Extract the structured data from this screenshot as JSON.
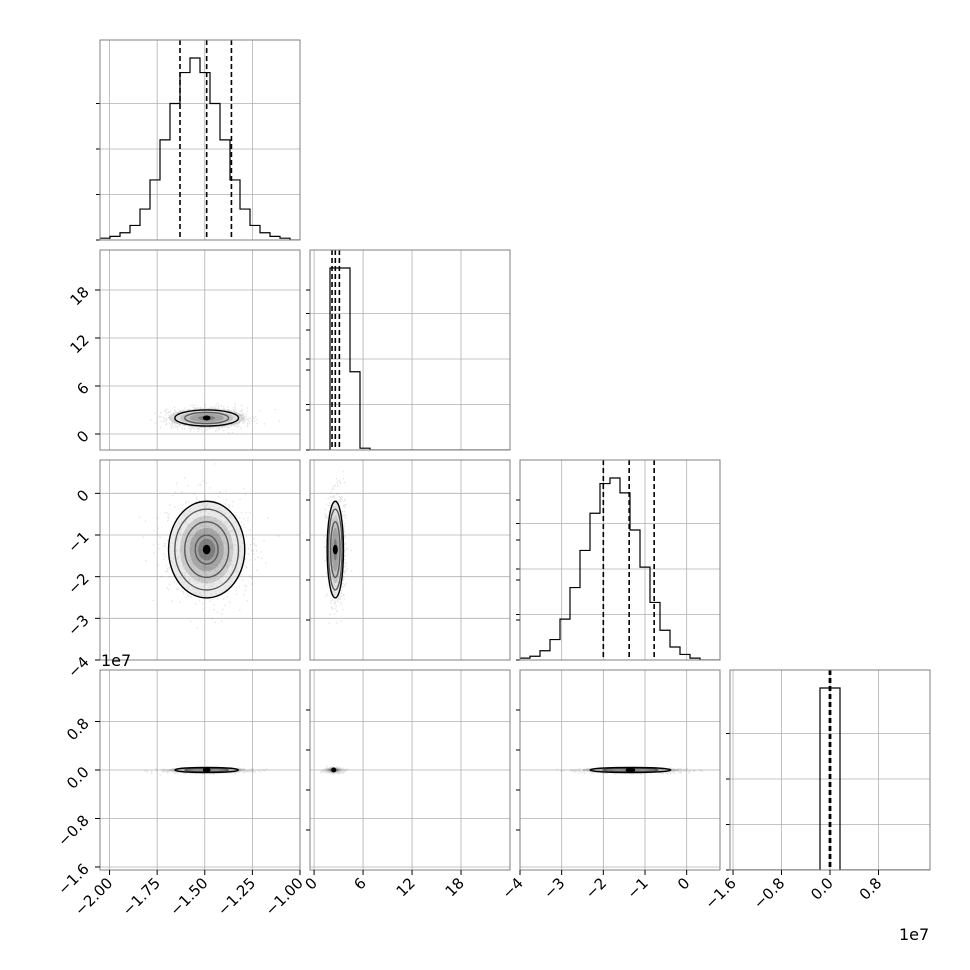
{
  "figure": {
    "offset_label": "1e7",
    "colors": {
      "hist": "#000000",
      "grid": "#b0b0b0",
      "frame": "#808080",
      "density": "#000000"
    }
  },
  "chart_data": [
    {
      "type": "histogram",
      "id": "p0",
      "bin_range": [
        -2.05,
        -1.0
      ],
      "counts": [
        1,
        2,
        4,
        8,
        17,
        33,
        55,
        75,
        92,
        100,
        92,
        75,
        55,
        33,
        17,
        8,
        4,
        2,
        1,
        0
      ],
      "quantiles": [
        -1.63,
        -1.49,
        -1.36
      ],
      "grid_x": [
        -2.0,
        -1.75,
        -1.5,
        -1.25,
        -1.0
      ]
    },
    {
      "type": "histogram",
      "id": "p1",
      "bin_range": [
        -0.5,
        24.0
      ],
      "counts": [
        0,
        0,
        100,
        100,
        43,
        1,
        0,
        0,
        0,
        0,
        0,
        0,
        0,
        0,
        0,
        0,
        0,
        0,
        0,
        0
      ],
      "quantiles": [
        2.2,
        2.6,
        3.1
      ],
      "grid_x": [
        0,
        6,
        12,
        18
      ]
    },
    {
      "type": "histogram",
      "id": "p2",
      "bin_range": [
        -4.0,
        0.8
      ],
      "counts": [
        1,
        2,
        5,
        11,
        22,
        39,
        59,
        79,
        95,
        98,
        90,
        70,
        50,
        31,
        16,
        7,
        3,
        1,
        0,
        0
      ],
      "quantiles": [
        -2.0,
        -1.38,
        -0.78
      ],
      "grid_x": [
        -4,
        -3,
        -2,
        -1,
        0
      ]
    },
    {
      "type": "histogram",
      "id": "p3",
      "bin_range": [
        -1.65,
        1.65
      ],
      "counts": [
        0,
        0,
        0,
        0,
        0,
        0,
        0,
        0,
        0,
        100,
        100,
        0,
        0,
        0,
        0,
        0,
        0,
        0,
        0,
        0
      ],
      "quantiles": [
        -0.01,
        0.0,
        0.01
      ],
      "grid_x": [
        -1.6,
        -0.8,
        0.0,
        0.8
      ]
    },
    {
      "type": "density",
      "id": "p10",
      "x_range": [
        -2.05,
        -1.0
      ],
      "y_range": [
        -2.0,
        23.0
      ],
      "center": [
        -1.49,
        2.0
      ],
      "sigma": [
        0.1,
        0.6
      ],
      "contour_levels": [
        1.15,
        1.67
      ],
      "grid_x": [
        -2.0,
        -1.75,
        -1.5,
        -1.25,
        -1.0
      ],
      "grid_y": [
        0,
        6,
        12,
        18
      ]
    },
    {
      "type": "density",
      "id": "p20",
      "x_range": [
        -2.05,
        -1.0
      ],
      "y_range": [
        -4.0,
        0.8
      ],
      "center": [
        -1.49,
        -1.35
      ],
      "sigma": [
        0.1,
        0.58
      ],
      "contour_levels": [
        0.6,
        1.15,
        1.67,
        2.0
      ],
      "grid_x": [
        -2.0,
        -1.75,
        -1.5,
        -1.25,
        -1.0
      ],
      "grid_y": [
        0,
        -1,
        -2,
        -3,
        -4
      ]
    },
    {
      "type": "density",
      "id": "p21",
      "x_range": [
        -0.5,
        24.0
      ],
      "y_range": [
        -4.0,
        0.8
      ],
      "center": [
        2.6,
        -1.35
      ],
      "sigma": [
        0.5,
        0.58
      ],
      "contour_levels": [
        1.15,
        1.67,
        2.0
      ],
      "grid_x": [
        0,
        6,
        12,
        18
      ],
      "grid_y": [
        0,
        -1,
        -2,
        -3,
        -4
      ]
    },
    {
      "type": "density",
      "id": "p30",
      "x_range": [
        -2.05,
        -1.0
      ],
      "y_range": [
        -1.65,
        1.65
      ],
      "center": [
        -1.49,
        0.0
      ],
      "sigma": [
        0.1,
        0.018
      ],
      "contour_levels": [
        1.15,
        1.67
      ],
      "grid_x": [
        -2.0,
        -1.75,
        -1.5,
        -1.25,
        -1.0
      ],
      "grid_y": [
        -1.6,
        -0.8,
        0.0,
        0.8
      ]
    },
    {
      "type": "density",
      "id": "p31",
      "x_range": [
        -0.5,
        24.0
      ],
      "y_range": [
        -1.65,
        1.65
      ],
      "center": [
        2.4,
        0.0
      ],
      "sigma": [
        0.5,
        0.018
      ],
      "contour_levels": [],
      "grid_x": [
        0,
        6,
        12,
        18
      ],
      "grid_y": [
        -1.6,
        -0.8,
        0.0,
        0.8
      ]
    },
    {
      "type": "density",
      "id": "p32",
      "x_range": [
        -4.0,
        0.8
      ],
      "y_range": [
        -1.65,
        1.65
      ],
      "center": [
        -1.35,
        0.0
      ],
      "sigma": [
        0.58,
        0.018
      ],
      "contour_levels": [
        1.15,
        1.67
      ],
      "grid_x": [
        -4,
        -3,
        -2,
        -1,
        0
      ],
      "grid_y": [
        -1.6,
        -0.8,
        0.0,
        0.8
      ]
    }
  ],
  "axes": {
    "x0": {
      "ticks": [
        -2.0,
        -1.75,
        -1.5,
        -1.25,
        -1.0
      ],
      "labels": [
        "−2.00",
        "−1.75",
        "−1.50",
        "−1.25",
        "−1.00"
      ]
    },
    "x1": {
      "ticks": [
        0,
        6,
        12,
        18
      ],
      "labels": [
        "0",
        "6",
        "12",
        "18"
      ]
    },
    "x2": {
      "ticks": [
        -4,
        -3,
        -2,
        -1,
        0
      ],
      "labels": [
        "−4",
        "−3",
        "−2",
        "−1",
        "0"
      ]
    },
    "x3": {
      "ticks": [
        -1.6,
        -0.8,
        0.0,
        0.8
      ],
      "labels": [
        "−1.6",
        "−0.8",
        "0.0",
        "0.8"
      ]
    },
    "y1": {
      "ticks": [
        0,
        6,
        12,
        18
      ],
      "labels": [
        "0",
        "6",
        "12",
        "18"
      ]
    },
    "y2": {
      "ticks": [
        0,
        -1,
        -2,
        -3,
        -4
      ],
      "labels": [
        "0",
        "−1",
        "−2",
        "−3",
        "−4"
      ]
    },
    "y3": {
      "ticks": [
        -1.6,
        -0.8,
        0.0,
        0.8
      ],
      "labels": [
        "−1.6",
        "−0.8",
        "0.0",
        "0.8"
      ]
    }
  }
}
